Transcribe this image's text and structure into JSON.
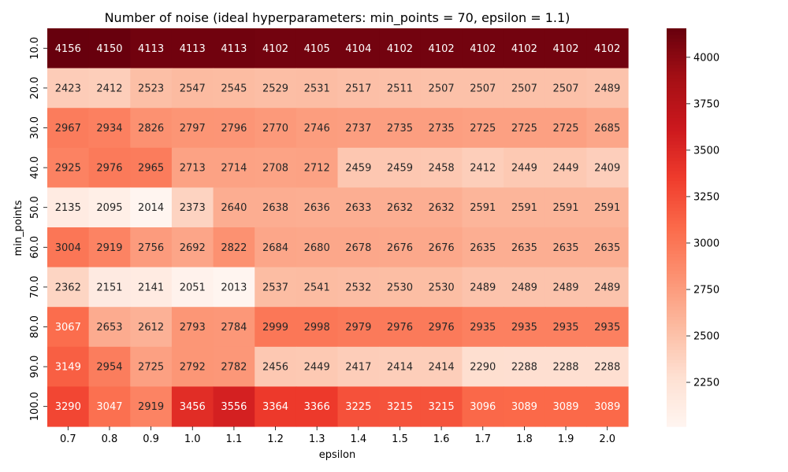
{
  "chart_data": {
    "type": "heatmap",
    "title": "Number of noise (ideal hyperparameters: min_points = 70, epsilon = 1.1)",
    "xlabel": "epsilon",
    "ylabel": "min_points",
    "x": [
      "0.7",
      "0.8",
      "0.9",
      "1.0",
      "1.1",
      "1.2",
      "1.3",
      "1.4",
      "1.5",
      "1.6",
      "1.7",
      "1.8",
      "1.9",
      "2.0"
    ],
    "y": [
      "10.0",
      "20.0",
      "30.0",
      "40.0",
      "50.0",
      "60.0",
      "70.0",
      "80.0",
      "90.0",
      "100.0"
    ],
    "values": [
      [
        4156,
        4150,
        4113,
        4113,
        4113,
        4102,
        4105,
        4104,
        4102,
        4102,
        4102,
        4102,
        4102,
        4102
      ],
      [
        2423,
        2412,
        2523,
        2547,
        2545,
        2529,
        2531,
        2517,
        2511,
        2507,
        2507,
        2507,
        2507,
        2489
      ],
      [
        2967,
        2934,
        2826,
        2797,
        2796,
        2770,
        2746,
        2737,
        2735,
        2735,
        2725,
        2725,
        2725,
        2685
      ],
      [
        2925,
        2976,
        2965,
        2713,
        2714,
        2708,
        2712,
        2459,
        2459,
        2458,
        2412,
        2449,
        2449,
        2409
      ],
      [
        2135,
        2095,
        2014,
        2373,
        2640,
        2638,
        2636,
        2633,
        2632,
        2632,
        2591,
        2591,
        2591,
        2591
      ],
      [
        3004,
        2919,
        2756,
        2692,
        2822,
        2684,
        2680,
        2678,
        2676,
        2676,
        2635,
        2635,
        2635,
        2635
      ],
      [
        2362,
        2151,
        2141,
        2051,
        2013,
        2537,
        2541,
        2532,
        2530,
        2530,
        2489,
        2489,
        2489,
        2489
      ],
      [
        3067,
        2653,
        2612,
        2793,
        2784,
        2999,
        2998,
        2979,
        2976,
        2976,
        2935,
        2935,
        2935,
        2935
      ],
      [
        3149,
        2954,
        2725,
        2792,
        2782,
        2456,
        2449,
        2417,
        2414,
        2414,
        2290,
        2288,
        2288,
        2288
      ],
      [
        3290,
        3047,
        2919,
        3456,
        3556,
        3364,
        3366,
        3225,
        3215,
        3215,
        3096,
        3089,
        3089,
        3089
      ]
    ],
    "colormap": "Reds",
    "value_range": [
      2013,
      4156
    ],
    "colorbar_ticks": [
      2250,
      2500,
      2750,
      3000,
      3250,
      3500,
      3750,
      4000
    ],
    "colorbar_position": "right",
    "grid": false
  }
}
